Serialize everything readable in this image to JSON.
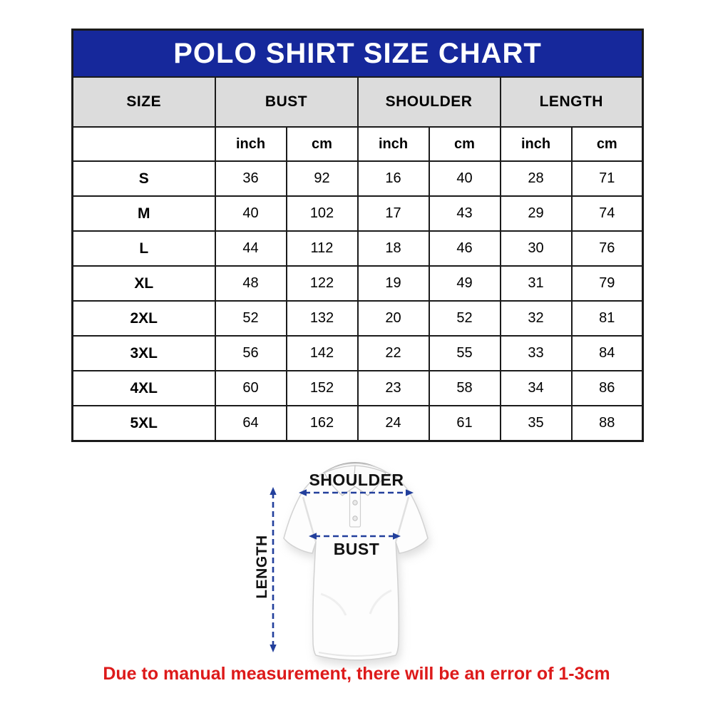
{
  "title": "POLO SHIRT SIZE CHART",
  "table": {
    "group_headers": {
      "size": "SIZE",
      "bust": "BUST",
      "shoulder": "SHOULDER",
      "length": "LENGTH"
    },
    "unit_headers": [
      "inch",
      "cm",
      "inch",
      "cm",
      "inch",
      "cm"
    ],
    "rows": [
      {
        "size": "S",
        "values": [
          "36",
          "92",
          "16",
          "40",
          "28",
          "71"
        ]
      },
      {
        "size": "M",
        "values": [
          "40",
          "102",
          "17",
          "43",
          "29",
          "74"
        ]
      },
      {
        "size": "L",
        "values": [
          "44",
          "112",
          "18",
          "46",
          "30",
          "76"
        ]
      },
      {
        "size": "XL",
        "values": [
          "48",
          "122",
          "19",
          "49",
          "31",
          "79"
        ]
      },
      {
        "size": "2XL",
        "values": [
          "52",
          "132",
          "20",
          "52",
          "32",
          "81"
        ]
      },
      {
        "size": "3XL",
        "values": [
          "56",
          "142",
          "22",
          "55",
          "33",
          "84"
        ]
      },
      {
        "size": "4XL",
        "values": [
          "60",
          "152",
          "23",
          "58",
          "34",
          "86"
        ]
      },
      {
        "size": "5XL",
        "values": [
          "64",
          "162",
          "24",
          "61",
          "35",
          "88"
        ]
      }
    ]
  },
  "diagram": {
    "shoulder_label": "SHOULDER",
    "bust_label": "BUST",
    "length_label": "LENGTH"
  },
  "note": "Due to manual measurement, there will be an error of 1-3cm",
  "colors": {
    "banner_blue": "#16289b",
    "header_gray": "#dcdcdc",
    "arrow_blue": "#223f9c",
    "note_red": "#dd1a1a",
    "border_black": "#1b1b1b"
  },
  "chart_data": {
    "type": "table",
    "title": "POLO SHIRT SIZE CHART",
    "columns": [
      "SIZE",
      "BUST inch",
      "BUST cm",
      "SHOULDER inch",
      "SHOULDER cm",
      "LENGTH inch",
      "LENGTH cm"
    ],
    "rows": [
      [
        "S",
        36,
        92,
        16,
        40,
        28,
        71
      ],
      [
        "M",
        40,
        102,
        17,
        43,
        29,
        74
      ],
      [
        "L",
        44,
        112,
        18,
        46,
        30,
        76
      ],
      [
        "XL",
        48,
        122,
        19,
        49,
        31,
        79
      ],
      [
        "2XL",
        52,
        132,
        20,
        52,
        32,
        81
      ],
      [
        "3XL",
        56,
        142,
        22,
        55,
        33,
        84
      ],
      [
        "4XL",
        60,
        152,
        23,
        58,
        34,
        86
      ],
      [
        "5XL",
        64,
        162,
        24,
        61,
        35,
        88
      ]
    ],
    "footnote": "Due to manual measurement, there will be an error of 1-3cm"
  }
}
